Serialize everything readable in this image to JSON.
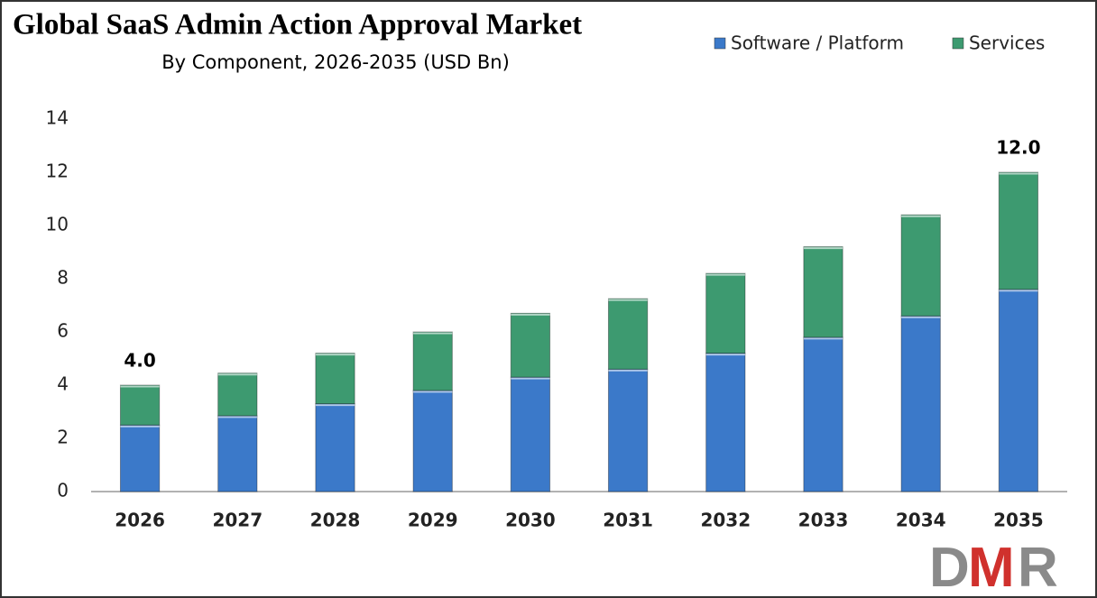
{
  "chart_data": {
    "type": "stacked_bar",
    "title": "Global SaaS Admin Action Approval Market",
    "subtitle": "By Component, 2026-2035 (USD Bn)",
    "categories": [
      "2026",
      "2027",
      "2028",
      "2029",
      "2030",
      "2031",
      "2032",
      "2033",
      "2034",
      "2035"
    ],
    "series": [
      {
        "name": "Software / Platform",
        "color": "#3b79c9",
        "values": [
          2.5,
          2.85,
          3.3,
          3.8,
          4.3,
          4.6,
          5.2,
          5.8,
          6.6,
          7.6
        ]
      },
      {
        "name": "Services",
        "color": "#3d9a70",
        "values": [
          1.5,
          1.6,
          1.9,
          2.2,
          2.4,
          2.65,
          3.0,
          3.4,
          3.8,
          4.4
        ]
      }
    ],
    "annotations": [
      {
        "x": "2026",
        "value": 4,
        "label": "4.0"
      },
      {
        "x": "2035",
        "value": 12,
        "label": "12.0"
      }
    ],
    "ylim": [
      0,
      14
    ],
    "yticks": [
      0,
      2,
      4,
      6,
      8,
      10,
      12,
      14
    ],
    "grid": false,
    "legend": "top-right"
  },
  "logo": [
    "D",
    "M",
    "R"
  ]
}
